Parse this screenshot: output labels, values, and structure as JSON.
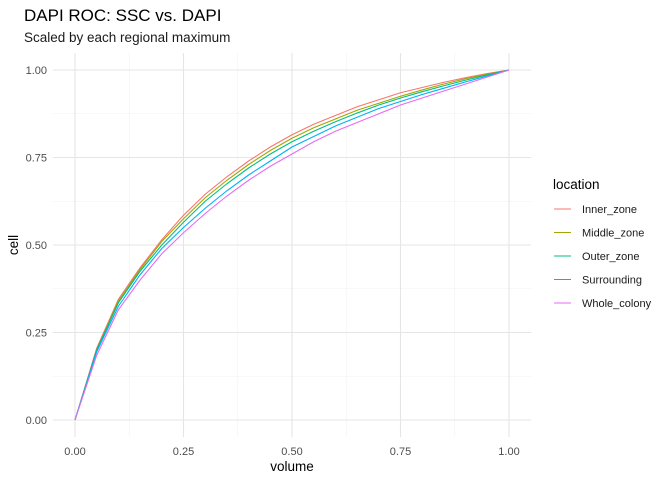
{
  "chart_data": {
    "type": "line",
    "title": "DAPI ROC: SSC vs. DAPI",
    "subtitle": "Scaled by each regional maximum",
    "xlabel": "volume",
    "ylabel": "cell",
    "xlim": [
      0,
      1
    ],
    "ylim": [
      0,
      1
    ],
    "x_ticks": [
      "0.00",
      "0.25",
      "0.50",
      "0.75",
      "1.00"
    ],
    "y_ticks": [
      "0.00",
      "0.25",
      "0.50",
      "0.75",
      "1.00"
    ],
    "grid": true,
    "legend": {
      "title": "location",
      "position": "right"
    },
    "x": [
      0,
      0.05,
      0.1,
      0.15,
      0.2,
      0.25,
      0.3,
      0.35,
      0.4,
      0.45,
      0.5,
      0.55,
      0.6,
      0.65,
      0.7,
      0.75,
      0.8,
      0.85,
      0.9,
      0.95,
      1.0
    ],
    "series": [
      {
        "name": "Inner_zone",
        "color": "#F8766D",
        "values": [
          0,
          0.205,
          0.345,
          0.435,
          0.515,
          0.585,
          0.645,
          0.695,
          0.74,
          0.78,
          0.815,
          0.845,
          0.87,
          0.895,
          0.915,
          0.935,
          0.95,
          0.965,
          0.978,
          0.99,
          1.0
        ]
      },
      {
        "name": "Middle_zone",
        "color": "#A3A500",
        "values": [
          0,
          0.2,
          0.34,
          0.43,
          0.51,
          0.575,
          0.635,
          0.685,
          0.73,
          0.77,
          0.805,
          0.835,
          0.86,
          0.885,
          0.905,
          0.925,
          0.943,
          0.96,
          0.975,
          0.988,
          1.0
        ]
      },
      {
        "name": "Outer_zone",
        "color": "#00BF7D",
        "values": [
          0,
          0.2,
          0.335,
          0.425,
          0.5,
          0.565,
          0.625,
          0.675,
          0.72,
          0.76,
          0.795,
          0.825,
          0.852,
          0.877,
          0.9,
          0.92,
          0.938,
          0.955,
          0.971,
          0.986,
          1.0
        ]
      },
      {
        "name": "Surrounding",
        "color": "#00B0F6",
        "values": [
          0,
          0.195,
          0.325,
          0.415,
          0.49,
          0.55,
          0.605,
          0.655,
          0.7,
          0.74,
          0.78,
          0.81,
          0.84,
          0.865,
          0.89,
          0.91,
          0.93,
          0.948,
          0.966,
          0.983,
          1.0
        ]
      },
      {
        "name": "Whole_colony",
        "color": "#E76BF3",
        "values": [
          0,
          0.185,
          0.315,
          0.4,
          0.475,
          0.535,
          0.59,
          0.64,
          0.685,
          0.725,
          0.76,
          0.795,
          0.825,
          0.85,
          0.875,
          0.9,
          0.92,
          0.94,
          0.96,
          0.98,
          1.0
        ]
      }
    ]
  }
}
